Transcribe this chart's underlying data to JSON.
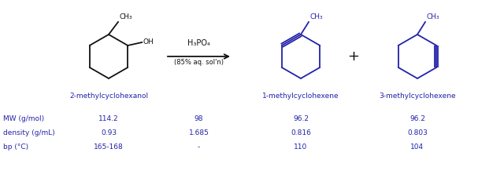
{
  "blue_color": "#2222aa",
  "black_color": "#111111",
  "bg_color": "#ffffff",
  "compound1_name": "2-methylcyclohexanol",
  "compound2_name": "1-methylcyclohexene",
  "compound3_name": "3-methylcyclohexene",
  "reagent_line1": "H₃PO₄",
  "reagent_line2": "(85% aq. sol'n)",
  "row_labels": [
    "MW (g/mol)",
    "density (g/mL)",
    "bp (°C)"
  ],
  "col1_vals": [
    "114.2",
    "0.93",
    "165-168"
  ],
  "col2_vals": [
    "98",
    "1.685",
    "-"
  ],
  "col3_vals": [
    "96.2",
    "0.816",
    "110"
  ],
  "col4_vals": [
    "96.2",
    "0.803",
    "104"
  ],
  "figsize": [
    6.07,
    2.27
  ],
  "dpi": 100
}
